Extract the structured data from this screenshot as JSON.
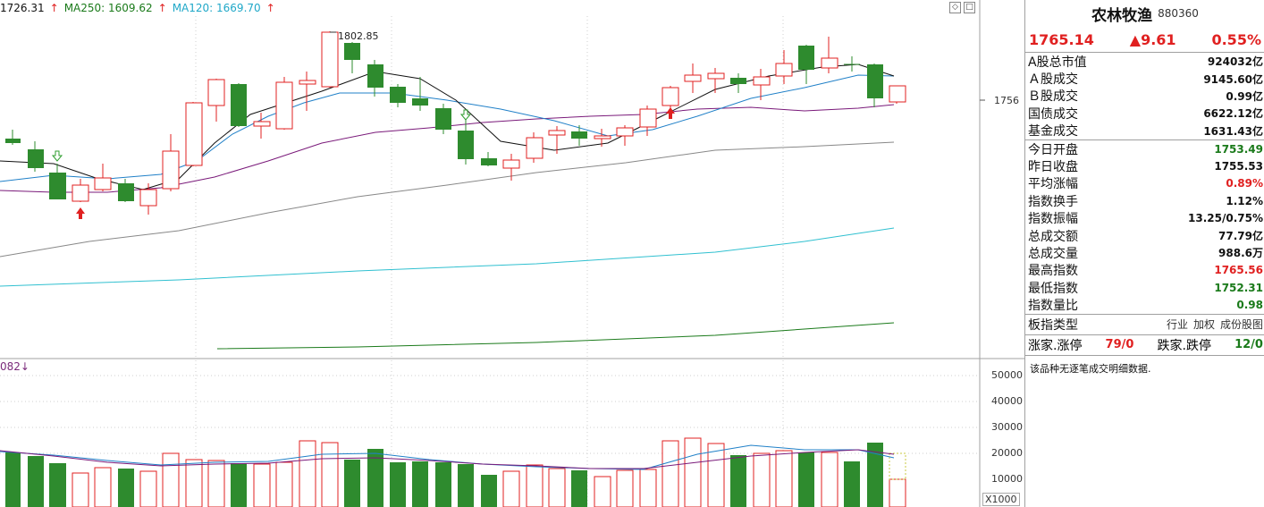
{
  "ma_legend": {
    "ma1_text": "1726.31",
    "ma2_text": "MA250: 1609.62",
    "ma3_text": "MA120: 1669.70",
    "arrow": "↑"
  },
  "annotations": {
    "high_label": "1802.85",
    "price_axis_label": "1756"
  },
  "volume": {
    "label": "082",
    "label_arrow": "↓",
    "axis_ticks": [
      "50000",
      "40000",
      "30000",
      "20000",
      "10000"
    ],
    "unit": "X1000"
  },
  "panel": {
    "name": "农林牧渔",
    "code": "880360",
    "price": "1765.14",
    "change": "▲9.61",
    "pct": "0.55%",
    "market_rows": [
      {
        "label": "A股总市值",
        "value": "924032亿"
      },
      {
        "label": "Ａ股成交",
        "value": "9145.60亿"
      },
      {
        "label": "Ｂ股成交",
        "value": "0.99亿"
      },
      {
        "label": "国债成交",
        "value": "6622.12亿"
      },
      {
        "label": "基金成交",
        "value": "1631.43亿"
      }
    ],
    "index_rows": [
      {
        "label": "今日开盘",
        "value": "1753.49",
        "color": "green"
      },
      {
        "label": "昨日收盘",
        "value": "1755.53",
        "color": "black"
      },
      {
        "label": "平均涨幅",
        "value": "0.89%",
        "color": "red"
      },
      {
        "label": "指数换手",
        "value": "1.12%",
        "color": "black"
      },
      {
        "label": "指数振幅",
        "value": "13.25/0.75%",
        "color": "black"
      },
      {
        "label": "总成交额",
        "value": "77.79亿",
        "color": "black"
      },
      {
        "label": "总成交量",
        "value": "988.6万",
        "color": "black"
      },
      {
        "label": "最高指数",
        "value": "1765.56",
        "color": "red"
      },
      {
        "label": "最低指数",
        "value": "1752.31",
        "color": "green"
      },
      {
        "label": "指数量比",
        "value": "0.98",
        "color": "green"
      }
    ],
    "type_label": "板指类型",
    "type_options": [
      "行业",
      "加权",
      "成份股图"
    ],
    "up_label": "涨家.涨停",
    "up_value": "79/0",
    "down_label": "跌家.跌停",
    "down_value": "12/0",
    "note": "该品种无逐笔成交明细数据."
  },
  "colors": {
    "up": "#e02020",
    "down": "#2e8b2e",
    "grid": "#d8d8d8"
  }
}
